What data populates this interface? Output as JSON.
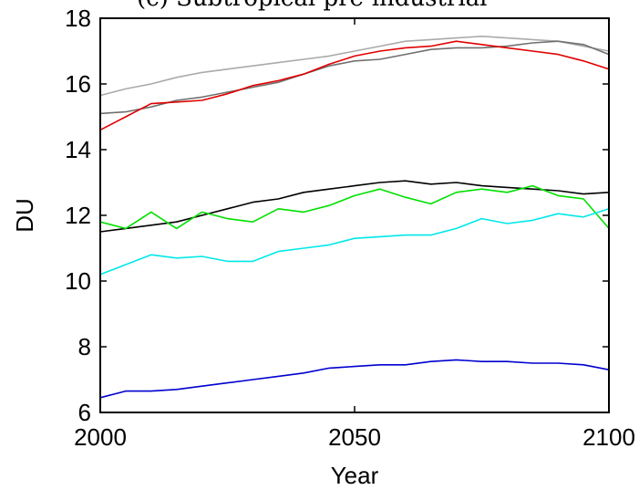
{
  "chart_data": {
    "type": "line",
    "title": "(c) Subtropical pre-industrial",
    "xlabel": "Year",
    "ylabel": "DU",
    "xlim": [
      2000,
      2100
    ],
    "ylim": [
      6,
      18
    ],
    "xticks": [
      2000,
      2050,
      2100
    ],
    "yticks": [
      6,
      8,
      10,
      12,
      14,
      16,
      18
    ],
    "x_tick_labels": [
      "2000",
      "2050",
      "2100"
    ],
    "y_tick_labels": [
      "6",
      "8",
      "10",
      "12",
      "14",
      "16",
      "18"
    ],
    "grid": false,
    "legend": "none",
    "x": [
      2000,
      2005,
      2010,
      2015,
      2020,
      2025,
      2030,
      2035,
      2040,
      2045,
      2050,
      2055,
      2060,
      2065,
      2070,
      2075,
      2080,
      2085,
      2090,
      2095,
      2100
    ],
    "series": [
      {
        "color": "#aaaaaa",
        "values": [
          15.65,
          15.85,
          16.0,
          16.2,
          16.35,
          16.45,
          16.55,
          16.65,
          16.75,
          16.85,
          17.0,
          17.15,
          17.3,
          17.35,
          17.4,
          17.45,
          17.4,
          17.35,
          17.3,
          17.15,
          17.0
        ]
      },
      {
        "color": "#707070",
        "values": [
          15.1,
          15.15,
          15.3,
          15.5,
          15.6,
          15.75,
          15.9,
          16.05,
          16.3,
          16.55,
          16.7,
          16.75,
          16.9,
          17.05,
          17.1,
          17.1,
          17.15,
          17.25,
          17.3,
          17.2,
          16.9
        ]
      },
      {
        "color": "#e00000",
        "values": [
          14.6,
          15.0,
          15.4,
          15.45,
          15.5,
          15.7,
          15.95,
          16.1,
          16.3,
          16.6,
          16.85,
          17.0,
          17.1,
          17.15,
          17.3,
          17.2,
          17.1,
          17.0,
          16.9,
          16.7,
          16.45
        ]
      },
      {
        "color": "#000000",
        "values": [
          11.5,
          11.6,
          11.7,
          11.8,
          12.0,
          12.2,
          12.4,
          12.5,
          12.7,
          12.8,
          12.9,
          13.0,
          13.05,
          12.95,
          13.0,
          12.9,
          12.85,
          12.8,
          12.75,
          12.65,
          12.7
        ]
      },
      {
        "color": "#00e000",
        "values": [
          11.8,
          11.6,
          12.1,
          11.6,
          12.1,
          11.9,
          11.8,
          12.2,
          12.1,
          12.3,
          12.6,
          12.8,
          12.55,
          12.35,
          12.7,
          12.8,
          12.7,
          12.9,
          12.6,
          12.5,
          11.6
        ]
      },
      {
        "color": "#00e8e8",
        "values": [
          10.2,
          10.5,
          10.8,
          10.7,
          10.75,
          10.6,
          10.6,
          10.9,
          11.0,
          11.1,
          11.3,
          11.35,
          11.4,
          11.4,
          11.6,
          11.9,
          11.75,
          11.85,
          12.05,
          11.95,
          12.2
        ]
      },
      {
        "color": "#0000d0",
        "values": [
          6.45,
          6.65,
          6.65,
          6.7,
          6.8,
          6.9,
          7.0,
          7.1,
          7.2,
          7.35,
          7.4,
          7.45,
          7.45,
          7.55,
          7.6,
          7.55,
          7.55,
          7.5,
          7.5,
          7.45,
          7.3
        ]
      }
    ]
  }
}
